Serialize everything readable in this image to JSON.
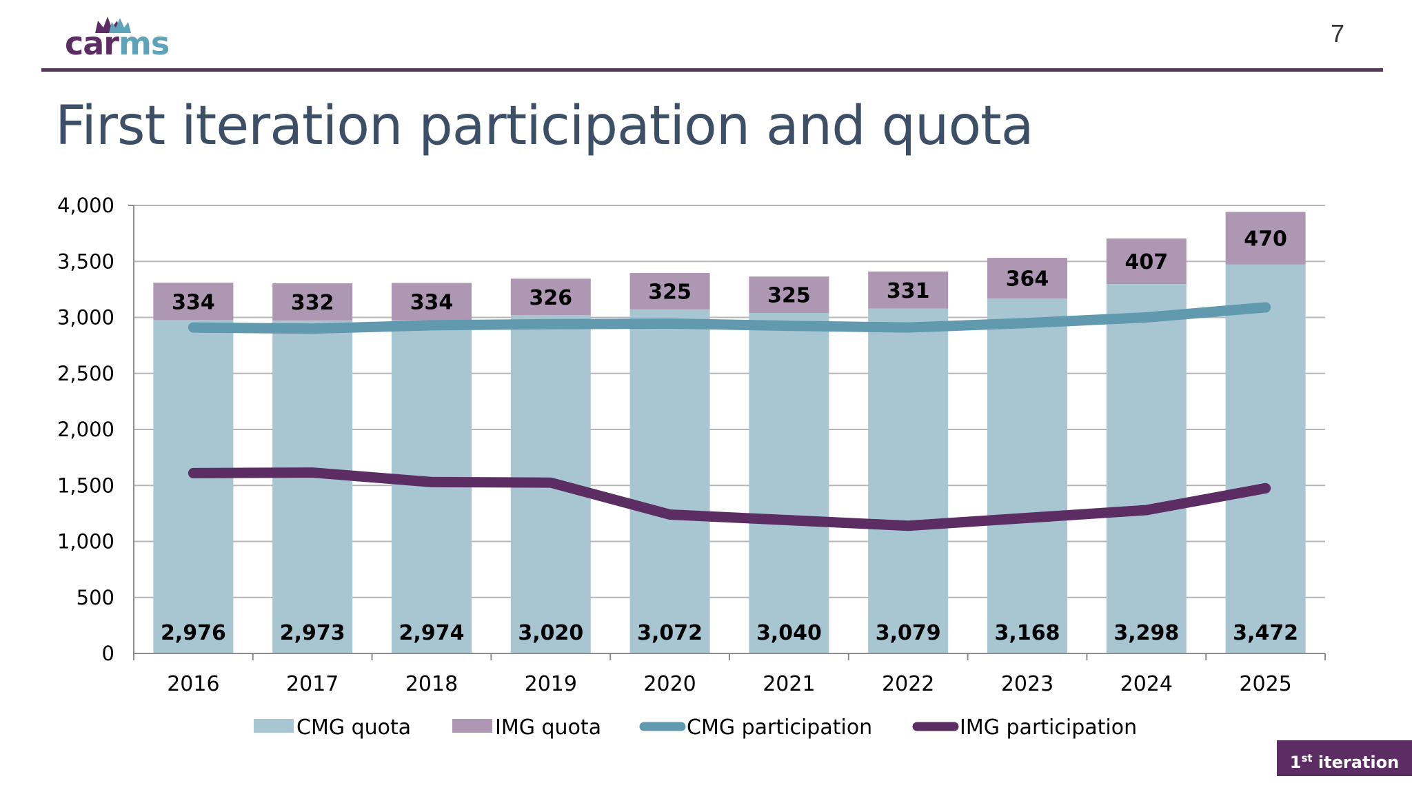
{
  "header": {
    "logo_text_a": "car",
    "logo_text_b": "ms",
    "page_number": "7",
    "title": "First iteration participation and quota"
  },
  "badge": {
    "num": "1",
    "sup": "st",
    "label": " iteration"
  },
  "colors": {
    "cmg_quota": "#a8c5d2",
    "img_quota": "#ae97b2",
    "cmg_participation": "#6199ae",
    "img_participation": "#5c2d63",
    "rule": "#5c3562",
    "title": "#3d4f67"
  },
  "chart_data": {
    "type": "bar",
    "stacked": true,
    "title": "",
    "xlabel": "",
    "ylabel": "",
    "ylim": [
      0,
      4000
    ],
    "yticks": [
      "0",
      "500",
      "1,000",
      "1,500",
      "2,000",
      "2,500",
      "3,000",
      "3,500",
      "4,000"
    ],
    "ytick_values": [
      0,
      500,
      1000,
      1500,
      2000,
      2500,
      3000,
      3500,
      4000
    ],
    "grid": true,
    "legend_position": "bottom",
    "categories": [
      "2016",
      "2017",
      "2018",
      "2019",
      "2020",
      "2021",
      "2022",
      "2023",
      "2024",
      "2025"
    ],
    "bar_series": [
      {
        "name": "CMG quota",
        "values": [
          2976,
          2973,
          2974,
          3020,
          3072,
          3040,
          3079,
          3168,
          3298,
          3472
        ],
        "labels": [
          "2,976",
          "2,973",
          "2,974",
          "3,020",
          "3,072",
          "3,040",
          "3,079",
          "3,168",
          "3,298",
          "3,472"
        ]
      },
      {
        "name": "IMG quota",
        "values": [
          334,
          332,
          334,
          326,
          325,
          325,
          331,
          364,
          407,
          470
        ],
        "labels": [
          "334",
          "332",
          "334",
          "326",
          "325",
          "325",
          "331",
          "364",
          "407",
          "470"
        ]
      }
    ],
    "line_series": [
      {
        "name": "CMG participation",
        "values": [
          2910,
          2900,
          2930,
          2940,
          2945,
          2925,
          2910,
          2950,
          3000,
          3090
        ]
      },
      {
        "name": "IMG participation",
        "values": [
          1610,
          1615,
          1530,
          1525,
          1240,
          1190,
          1140,
          1210,
          1280,
          1475
        ]
      }
    ]
  }
}
